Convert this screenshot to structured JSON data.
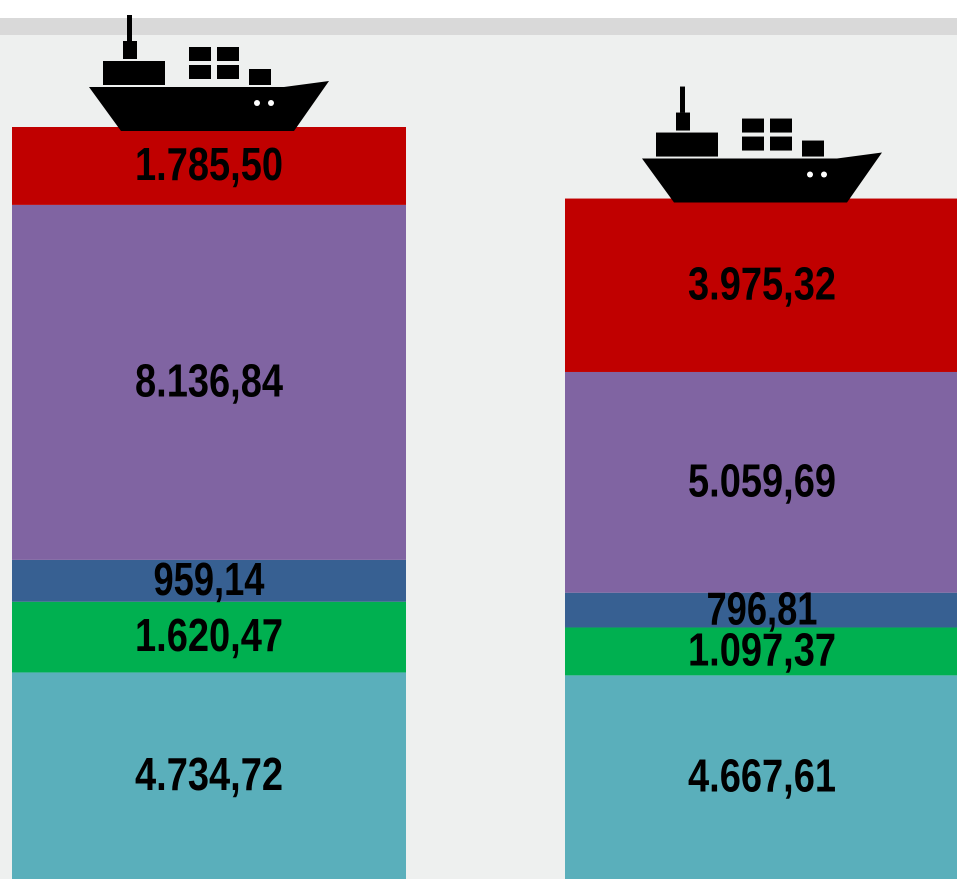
{
  "chart_data": {
    "type": "stacked_bar",
    "categories": [
      null,
      null
    ],
    "series": [
      {
        "color": "#5aafbb",
        "values": [
          4734.72,
          4667.61
        ],
        "value_labels": [
          "4.734,72",
          "4.667,61"
        ]
      },
      {
        "color": "#00b050",
        "values": [
          1620.47,
          1097.37
        ],
        "value_labels": [
          "1.620,47",
          "1.097,37"
        ]
      },
      {
        "color": "#376092",
        "values": [
          959.14,
          796.81
        ],
        "value_labels": [
          "959,14",
          "796,81"
        ]
      },
      {
        "color": "#8064a2",
        "values": [
          8136.84,
          5059.69
        ],
        "value_labels": [
          "8.136,84",
          "5.059,69"
        ]
      },
      {
        "color": "#c00000",
        "values": [
          1785.5,
          3975.32
        ],
        "value_labels": [
          "1.785,50",
          "3.975,32"
        ]
      }
    ]
  }
}
